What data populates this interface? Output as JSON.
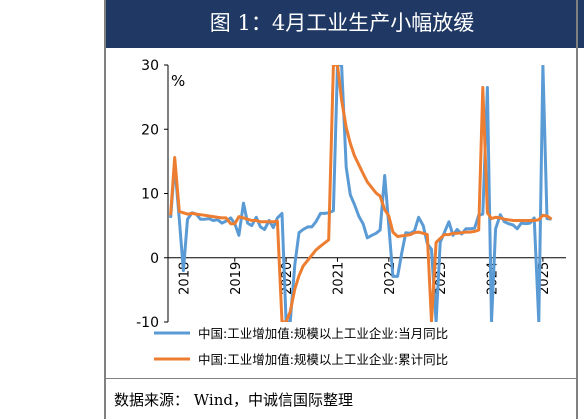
{
  "title": "图 1：4月工业生产小幅放缓",
  "source": "数据来源：  Wind，中诚信国际整理",
  "chart_data": {
    "type": "line",
    "unit_label": "%",
    "ylim": [
      -10,
      30
    ],
    "yticks": [
      "30",
      "20",
      "10",
      "0",
      "-10"
    ],
    "ytick_values": [
      30,
      20,
      10,
      0,
      -10
    ],
    "xlim": [
      2017.7,
      2025.45
    ],
    "xticks": [
      "2018",
      "2019",
      "2020",
      "2021",
      "2022",
      "2023",
      "2024",
      "2025"
    ],
    "xtick_values": [
      2018,
      2019,
      2020,
      2021,
      2022,
      2023,
      2024,
      2025
    ],
    "grid": false,
    "legend_position": "bottom",
    "series": [
      {
        "name": "中国:工业增加值:规模以上工业企业:当月同比",
        "color": "#5b9bd5",
        "points": [
          [
            2017.75,
            6.2
          ],
          [
            2017.83,
            14.5
          ],
          [
            2017.92,
            6.0
          ],
          [
            2018.0,
            -2.0
          ],
          [
            2018.08,
            6.0
          ],
          [
            2018.17,
            7.0
          ],
          [
            2018.25,
            6.8
          ],
          [
            2018.33,
            6.0
          ],
          [
            2018.42,
            6.0
          ],
          [
            2018.5,
            6.1
          ],
          [
            2018.58,
            5.8
          ],
          [
            2018.67,
            5.9
          ],
          [
            2018.75,
            5.4
          ],
          [
            2018.83,
            5.7
          ],
          [
            2018.92,
            6.2
          ],
          [
            2019.0,
            5.3
          ],
          [
            2019.08,
            3.5
          ],
          [
            2019.17,
            8.5
          ],
          [
            2019.25,
            5.4
          ],
          [
            2019.33,
            5.0
          ],
          [
            2019.42,
            6.3
          ],
          [
            2019.5,
            4.8
          ],
          [
            2019.58,
            4.4
          ],
          [
            2019.67,
            5.8
          ],
          [
            2019.75,
            4.7
          ],
          [
            2019.83,
            6.2
          ],
          [
            2019.92,
            6.9
          ],
          [
            2020.0,
            -10.0
          ],
          [
            2020.08,
            -10.0
          ],
          [
            2020.17,
            -1.1
          ],
          [
            2020.25,
            3.9
          ],
          [
            2020.33,
            4.4
          ],
          [
            2020.42,
            4.8
          ],
          [
            2020.5,
            4.8
          ],
          [
            2020.58,
            5.6
          ],
          [
            2020.67,
            6.9
          ],
          [
            2020.75,
            6.9
          ],
          [
            2020.83,
            7.0
          ],
          [
            2020.92,
            7.3
          ],
          [
            2021.0,
            30.0
          ],
          [
            2021.08,
            30.0
          ],
          [
            2021.17,
            14.1
          ],
          [
            2021.25,
            9.8
          ],
          [
            2021.33,
            8.3
          ],
          [
            2021.42,
            6.4
          ],
          [
            2021.5,
            5.3
          ],
          [
            2021.58,
            3.1
          ],
          [
            2021.67,
            3.5
          ],
          [
            2021.75,
            3.8
          ],
          [
            2021.83,
            4.3
          ],
          [
            2021.92,
            12.8
          ],
          [
            2022.0,
            5.0
          ],
          [
            2022.08,
            -2.9
          ],
          [
            2022.17,
            -2.9
          ],
          [
            2022.25,
            0.7
          ],
          [
            2022.33,
            3.9
          ],
          [
            2022.42,
            3.8
          ],
          [
            2022.5,
            4.2
          ],
          [
            2022.58,
            6.3
          ],
          [
            2022.67,
            5.0
          ],
          [
            2022.75,
            2.2
          ],
          [
            2022.83,
            1.3
          ],
          [
            2022.92,
            -10.0
          ],
          [
            2023.0,
            2.4
          ],
          [
            2023.08,
            3.9
          ],
          [
            2023.17,
            5.6
          ],
          [
            2023.25,
            3.5
          ],
          [
            2023.33,
            4.4
          ],
          [
            2023.42,
            3.7
          ],
          [
            2023.5,
            4.5
          ],
          [
            2023.58,
            4.5
          ],
          [
            2023.67,
            4.6
          ],
          [
            2023.75,
            6.6
          ],
          [
            2023.83,
            6.8
          ],
          [
            2023.92,
            26.5
          ],
          [
            2024.0,
            -10.0
          ],
          [
            2024.08,
            4.5
          ],
          [
            2024.17,
            6.7
          ],
          [
            2024.25,
            5.6
          ],
          [
            2024.33,
            5.3
          ],
          [
            2024.42,
            5.1
          ],
          [
            2024.5,
            4.5
          ],
          [
            2024.58,
            5.4
          ],
          [
            2024.67,
            5.3
          ],
          [
            2024.75,
            5.4
          ],
          [
            2024.83,
            6.2
          ],
          [
            2024.92,
            -10.0
          ],
          [
            2025.0,
            30.0
          ],
          [
            2025.08,
            6.1
          ],
          [
            2025.17,
            6.0
          ]
        ]
      },
      {
        "name": "中国:工业增加值:规模以上工业企业:累计同比",
        "color": "#ed7d31",
        "points": [
          [
            2017.75,
            6.6
          ],
          [
            2017.83,
            15.6
          ],
          [
            2017.92,
            7.2
          ],
          [
            2018.0,
            7.0
          ],
          [
            2018.08,
            6.8
          ],
          [
            2018.17,
            6.9
          ],
          [
            2018.25,
            6.8
          ],
          [
            2018.33,
            6.7
          ],
          [
            2018.42,
            6.6
          ],
          [
            2018.5,
            6.5
          ],
          [
            2018.58,
            6.4
          ],
          [
            2018.67,
            6.3
          ],
          [
            2018.75,
            6.2
          ],
          [
            2018.83,
            6.2
          ],
          [
            2018.92,
            5.3
          ],
          [
            2019.0,
            5.3
          ],
          [
            2019.08,
            6.4
          ],
          [
            2019.17,
            6.2
          ],
          [
            2019.25,
            6.0
          ],
          [
            2019.33,
            5.8
          ],
          [
            2019.42,
            5.8
          ],
          [
            2019.5,
            5.6
          ],
          [
            2019.58,
            5.6
          ],
          [
            2019.67,
            5.6
          ],
          [
            2019.75,
            5.6
          ],
          [
            2019.83,
            5.7
          ],
          [
            2019.92,
            -10.0
          ],
          [
            2020.0,
            -10.0
          ],
          [
            2020.08,
            -8.4
          ],
          [
            2020.17,
            -4.9
          ],
          [
            2020.25,
            -2.8
          ],
          [
            2020.33,
            -1.3
          ],
          [
            2020.42,
            -0.4
          ],
          [
            2020.5,
            0.4
          ],
          [
            2020.58,
            1.2
          ],
          [
            2020.67,
            1.8
          ],
          [
            2020.75,
            2.3
          ],
          [
            2020.83,
            2.8
          ],
          [
            2020.92,
            30.0
          ],
          [
            2021.0,
            30.0
          ],
          [
            2021.08,
            24.5
          ],
          [
            2021.17,
            20.3
          ],
          [
            2021.25,
            17.8
          ],
          [
            2021.33,
            15.9
          ],
          [
            2021.42,
            14.4
          ],
          [
            2021.5,
            13.1
          ],
          [
            2021.58,
            11.8
          ],
          [
            2021.67,
            10.9
          ],
          [
            2021.75,
            10.1
          ],
          [
            2021.83,
            9.6
          ],
          [
            2021.92,
            7.5
          ],
          [
            2022.0,
            6.5
          ],
          [
            2022.08,
            4.0
          ],
          [
            2022.17,
            3.3
          ],
          [
            2022.25,
            3.4
          ],
          [
            2022.33,
            3.5
          ],
          [
            2022.42,
            3.6
          ],
          [
            2022.5,
            3.9
          ],
          [
            2022.58,
            4.0
          ],
          [
            2022.67,
            3.8
          ],
          [
            2022.75,
            3.6
          ],
          [
            2022.83,
            -10.0
          ],
          [
            2022.92,
            2.4
          ],
          [
            2023.0,
            3.0
          ],
          [
            2023.08,
            3.6
          ],
          [
            2023.17,
            3.6
          ],
          [
            2023.25,
            3.8
          ],
          [
            2023.33,
            3.8
          ],
          [
            2023.42,
            3.9
          ],
          [
            2023.5,
            4.0
          ],
          [
            2023.58,
            4.0
          ],
          [
            2023.67,
            4.1
          ],
          [
            2023.75,
            4.3
          ],
          [
            2023.83,
            26.5
          ],
          [
            2023.92,
            7.0
          ],
          [
            2024.0,
            6.1
          ],
          [
            2024.08,
            6.3
          ],
          [
            2024.17,
            6.2
          ],
          [
            2024.25,
            6.0
          ],
          [
            2024.33,
            5.9
          ],
          [
            2024.42,
            5.8
          ],
          [
            2024.5,
            5.8
          ],
          [
            2024.58,
            5.8
          ],
          [
            2024.67,
            5.8
          ],
          [
            2024.75,
            5.8
          ],
          [
            2024.83,
            5.8
          ],
          [
            2024.92,
            5.9
          ],
          [
            2025.0,
            6.6
          ],
          [
            2025.08,
            6.5
          ],
          [
            2025.17,
            6.0
          ]
        ]
      }
    ]
  }
}
